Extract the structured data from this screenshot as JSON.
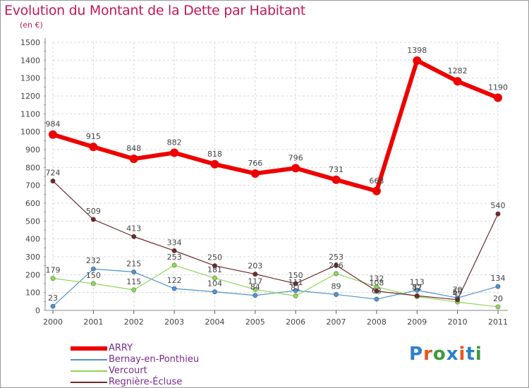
{
  "title": "Evolution du Montant de la Dette par Habitant",
  "unit": "(en €)",
  "logo": {
    "text": "Proxiti",
    "colors": [
      "#2e7fc9",
      "#e8571e",
      "#3c9a3a",
      "#2e7fc9",
      "#e8571e",
      "#2e7fc9",
      "#3c9a3a"
    ]
  },
  "chart_data": {
    "type": "line",
    "categories": [
      "2000",
      "2001",
      "2002",
      "2003",
      "2004",
      "2005",
      "2006",
      "2007",
      "2008",
      "2009",
      "2010",
      "2011"
    ],
    "ylim": [
      0,
      1500
    ],
    "yticks": [
      0,
      100,
      200,
      300,
      400,
      500,
      600,
      700,
      800,
      900,
      1000,
      1100,
      1200,
      1300,
      1400,
      1500
    ],
    "grid": true,
    "legend_position": "bottom-left",
    "series": [
      {
        "name": "ARRY",
        "color": "#ee0000",
        "width": 6,
        "marker": 6,
        "values": [
          984,
          915,
          848,
          882,
          818,
          766,
          796,
          731,
          668,
          1398,
          1282,
          1190
        ],
        "labels": [
          "984",
          "915",
          "848",
          "882",
          "818",
          "766",
          "796",
          "731",
          "668",
          "1398",
          "1282",
          "1190"
        ]
      },
      {
        "name": "Bernay-en-Ponthieu",
        "color": "#4f93cf",
        "width": 1.2,
        "marker": 3.2,
        "values": [
          23,
          232,
          215,
          122,
          104,
          84,
          111,
          89,
          63,
          113,
          70,
          134
        ],
        "labels": [
          "23",
          "232",
          "215",
          "122",
          "104",
          "84",
          "111",
          "89",
          "63",
          "113",
          "70",
          "134"
        ]
      },
      {
        "name": "Vercourt",
        "color": "#8fd65a",
        "width": 1.2,
        "marker": 3.2,
        "values": [
          179,
          150,
          115,
          253,
          181,
          117,
          81,
          206,
          132,
          77,
          47,
          20
        ],
        "labels": [
          "179",
          "150",
          "115",
          "253",
          "181",
          "117",
          "81",
          "206",
          "132",
          "77",
          "47",
          "20"
        ]
      },
      {
        "name": "Regnière-Écluse",
        "color": "#6e2a2a",
        "width": 1.2,
        "marker": 3.2,
        "values": [
          724,
          509,
          413,
          334,
          250,
          203,
          150,
          253,
          108,
          82,
          60,
          540
        ],
        "labels": [
          "724",
          "509",
          "413",
          "334",
          "250",
          "203",
          "150",
          "253",
          "108",
          "82",
          "60",
          "540"
        ]
      }
    ]
  }
}
